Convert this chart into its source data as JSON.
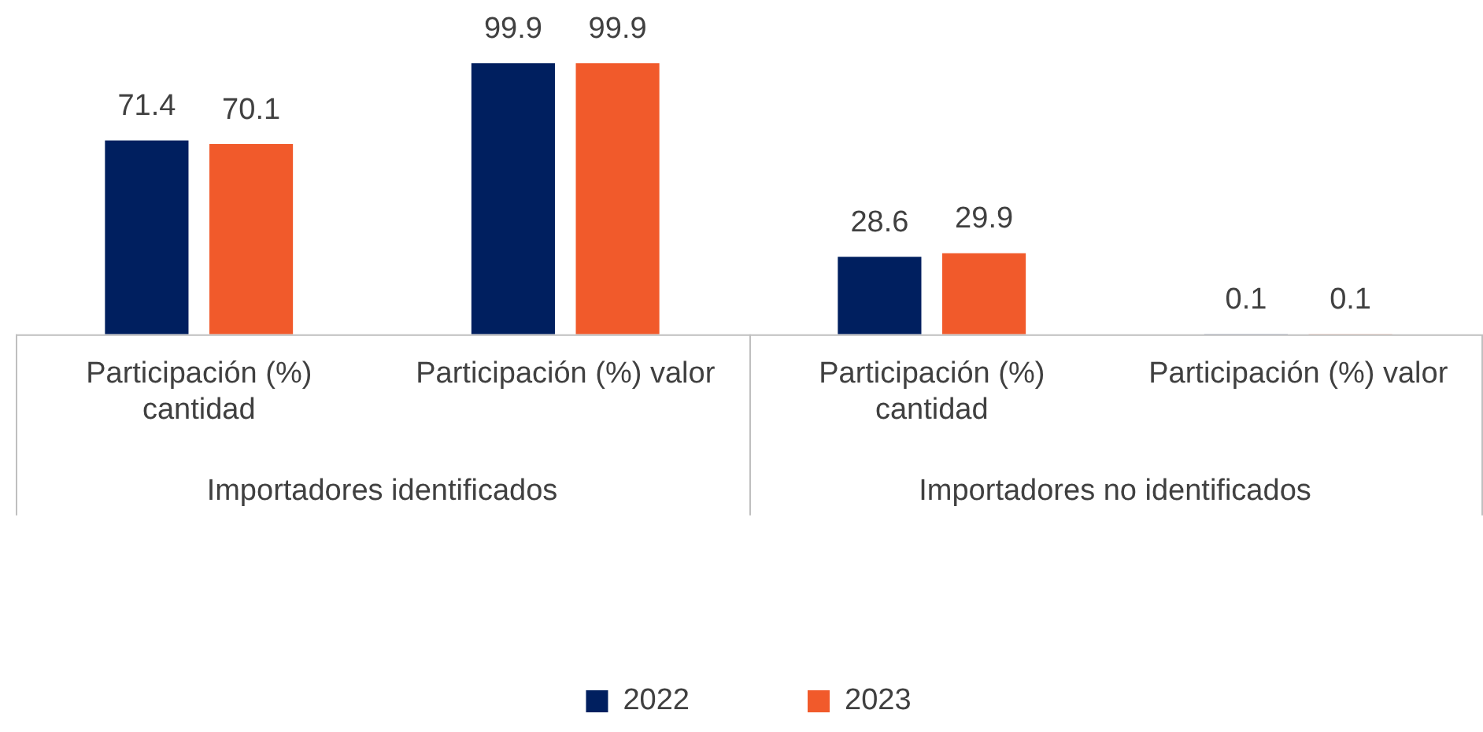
{
  "chart_data": {
    "type": "bar",
    "categories": [
      "Participación (%) cantidad",
      "Participación (%) valor",
      "Participación (%) cantidad",
      "Participación (%) valor"
    ],
    "series": [
      {
        "name": "2022",
        "color": "#001f5f",
        "values": [
          71.4,
          99.9,
          28.6,
          0.1
        ]
      },
      {
        "name": "2023",
        "color": "#f15a2b",
        "values": [
          70.1,
          99.9,
          29.9,
          0.1
        ]
      }
    ],
    "annotations": [
      "Importadores identificados",
      "Importadores no identificados"
    ],
    "data_labels": true,
    "legend": "bottom",
    "grid": false
  }
}
